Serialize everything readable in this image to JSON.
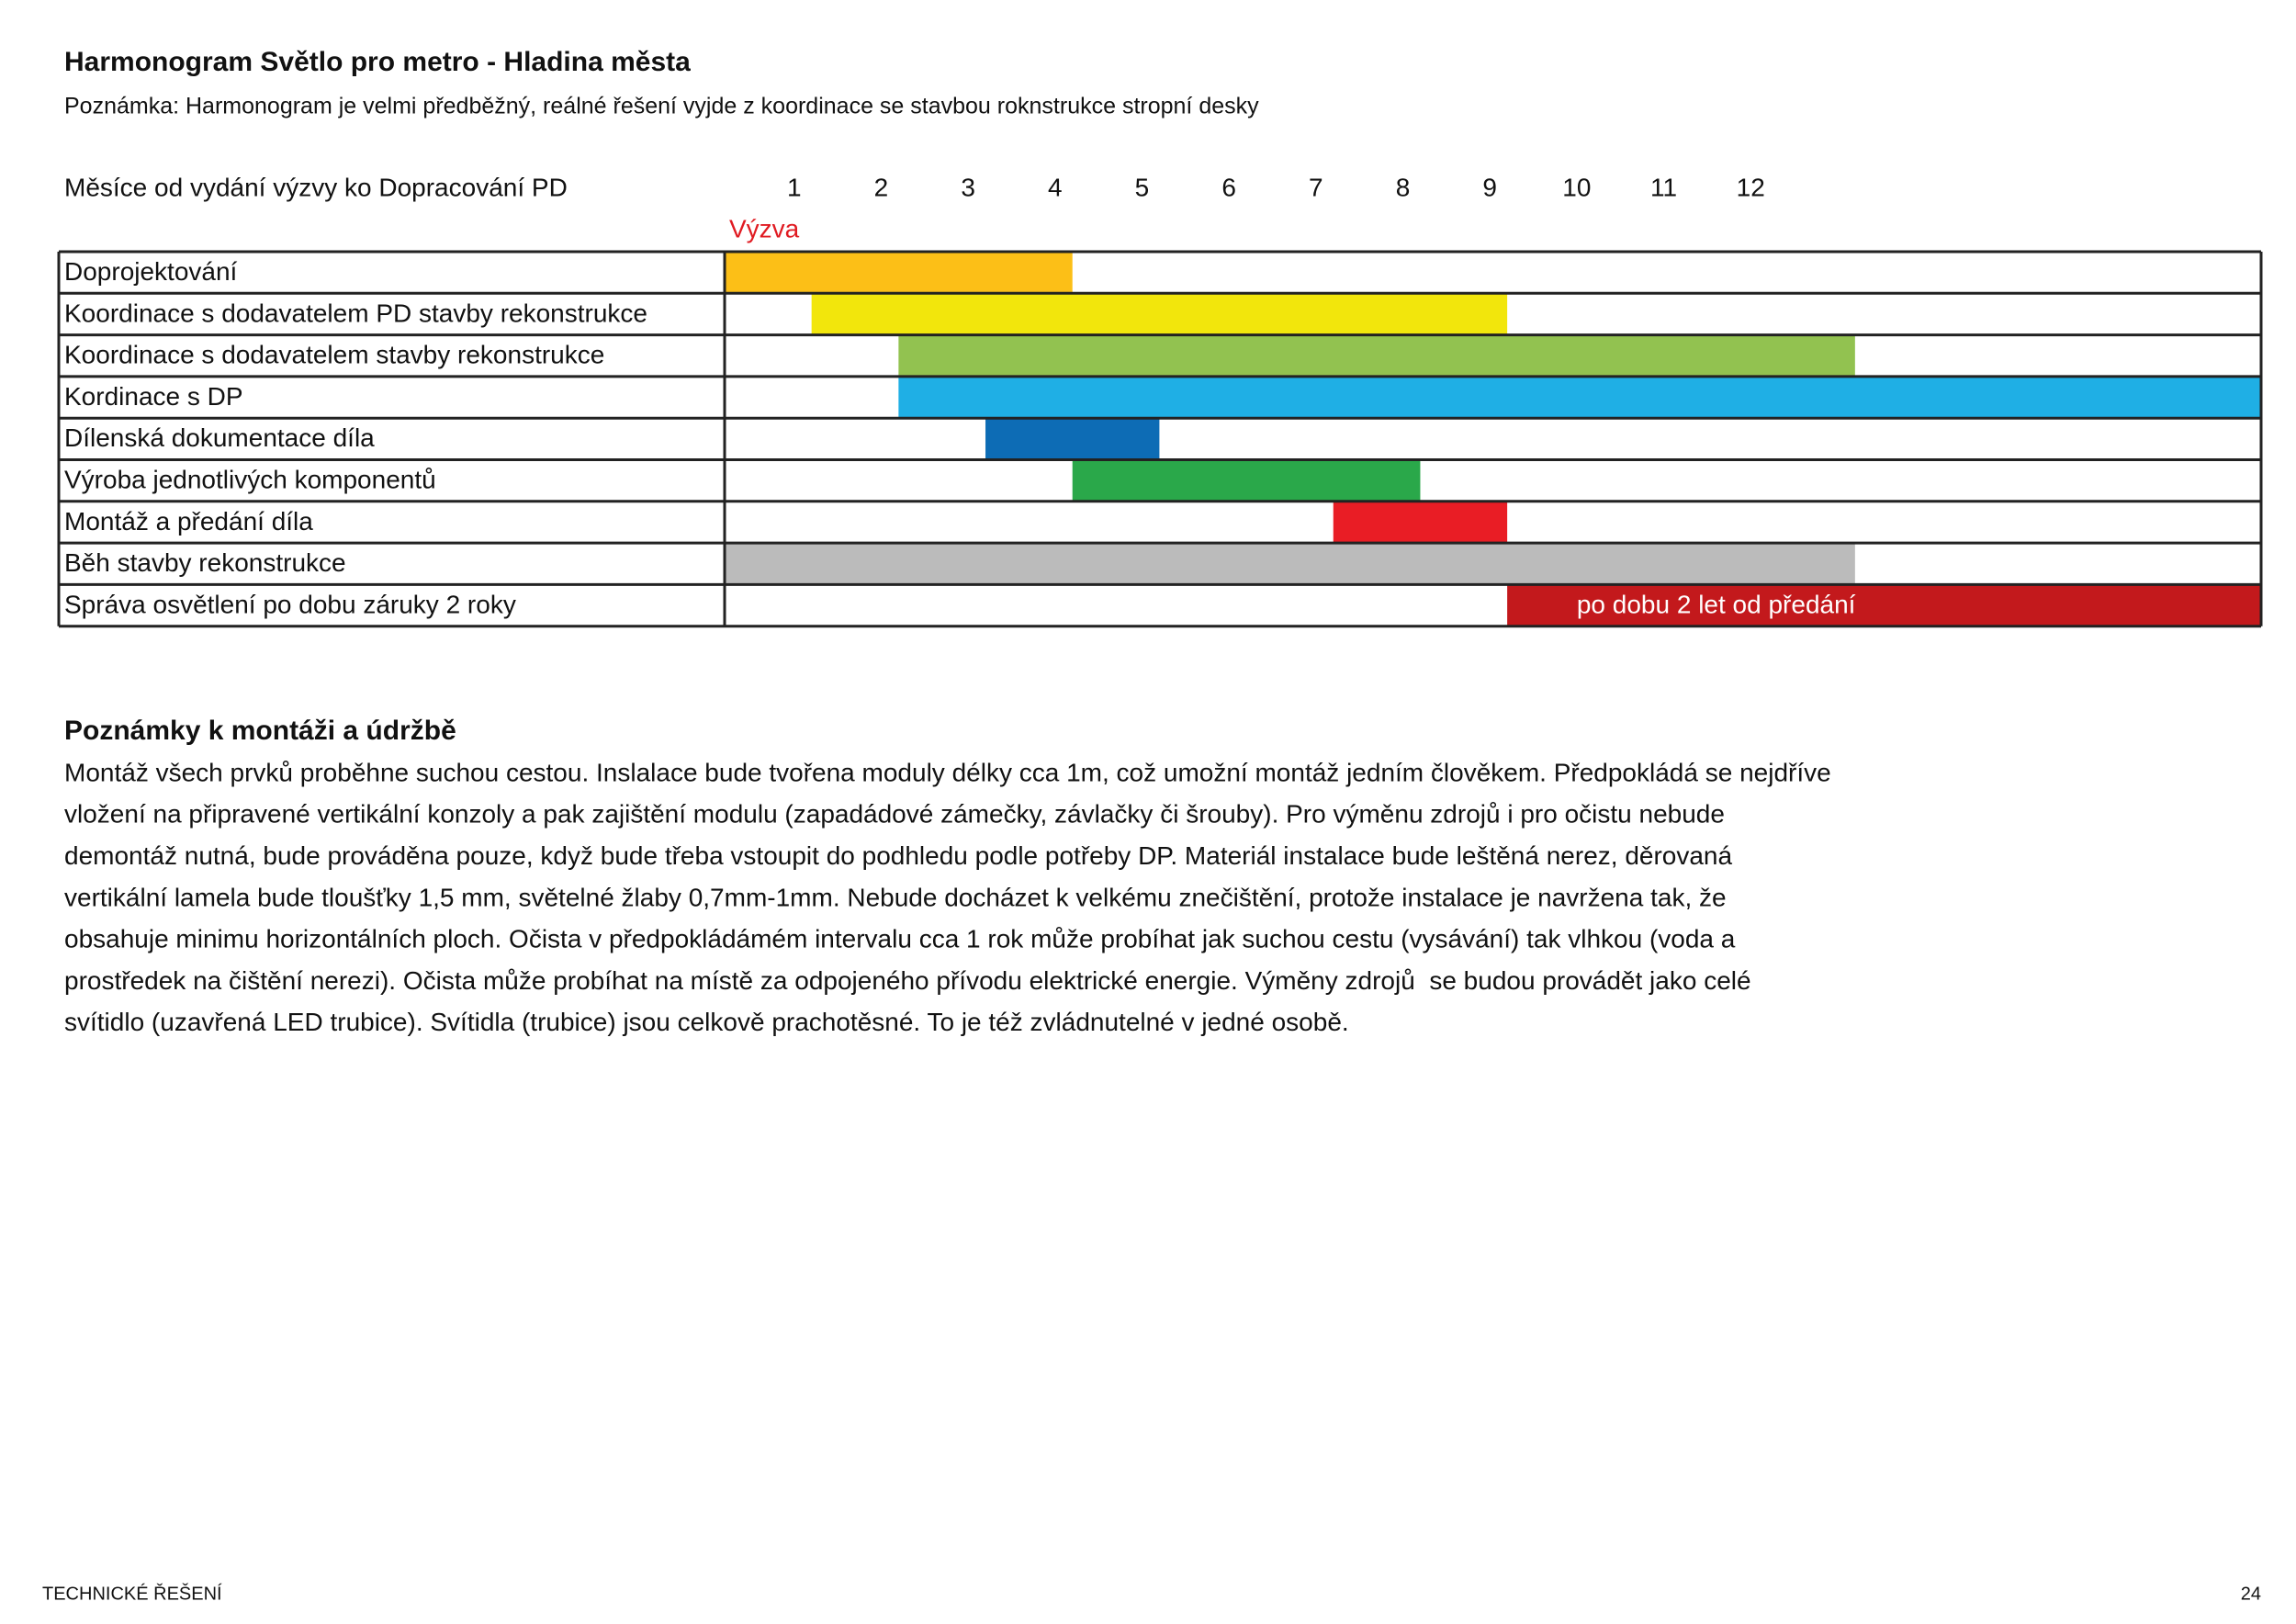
{
  "header": {
    "title": "Harmonogram Světlo pro metro - Hladina města",
    "note": "Poznámka: Harmonogram je velmi předběžný, reálné řešení vyjde z koordinace se stavbou roknstrukce stropní desky"
  },
  "gantt": {
    "axis_label": "Měsíce od vydání výzvy ko Dopracování PD",
    "months": [
      1,
      2,
      3,
      4,
      5,
      6,
      7,
      8,
      9,
      10,
      11,
      12
    ],
    "marker": "Výzva",
    "xlim": [
      0,
      17.67
    ],
    "tasks": [
      {
        "label": "Doprojektování",
        "start": 0,
        "end": 4,
        "color": "#fcbf17"
      },
      {
        "label": "Koordinace s dodavatelem PD stavby rekonstrukce",
        "start": 1,
        "end": 9,
        "color": "#f2e60c"
      },
      {
        "label": "Koordinace s dodavatelem stavby rekonstrukce",
        "start": 2,
        "end": 13,
        "color": "#92c250"
      },
      {
        "label": "Kordinace s DP",
        "start": 2,
        "end": 17.67,
        "color": "#1fafe5"
      },
      {
        "label": "Dílenská dokumentace díla",
        "start": 3,
        "end": 5,
        "color": "#0d6cb5"
      },
      {
        "label": "Výroba jednotlivých komponentů",
        "start": 4,
        "end": 8,
        "color": "#2aa84a"
      },
      {
        "label": "Montáž a předání díla",
        "start": 7,
        "end": 9,
        "color": "#e91d25"
      },
      {
        "label": "Běh stavby rekonstrukce",
        "start": 0,
        "end": 13,
        "color": "#bbbbbb"
      },
      {
        "label": "Správa osvětlení po dobu záruky 2 roky",
        "start": 9,
        "end": 17.67,
        "color": "#c3191c",
        "bar_label": "po dobu 2 let od předání"
      }
    ]
  },
  "notes": {
    "title": "Poznámky k montáži a údržbě",
    "lines": [
      "Montáž všech prvků proběhne suchou cestou. Inslalace bude tvořena moduly délky cca 1m, což umožní montáž jedním člověkem. Předpokládá se nejdříve",
      "vložení na připravené vertikální konzoly a pak zajištění modulu (zapadádové zámečky, závlačky či šrouby). Pro výměnu zdrojů i pro očistu nebude",
      "demontáž nutná, bude prováděna pouze, když bude třeba vstoupit do podhledu podle potřeby DP. Materiál instalace bude leštěná nerez, děrovaná",
      "vertikální lamela bude tloušťky 1,5 mm, světelné žlaby 0,7mm-1mm. Nebude docházet k velkému znečištění, protože instalace je navržena tak, že",
      "obsahuje minimu horizontálních ploch. Očista v předpokládámém intervalu cca 1 rok může probíhat jak suchou cestu (vysávání) tak vlhkou (voda a",
      "prostředek na čištění nerezi). Očista může probíhat na místě za odpojeného přívodu elektrické energie. Výměny zdrojů  se budou provádět jako celé",
      "svítidlo (uzavřená LED trubice). Svítidla (trubice) jsou celkově prachotěsné. To je též zvládnutelné v jedné osobě."
    ]
  },
  "footer": {
    "section": "TECHNICKÉ ŘEŠENÍ",
    "page": 24
  }
}
